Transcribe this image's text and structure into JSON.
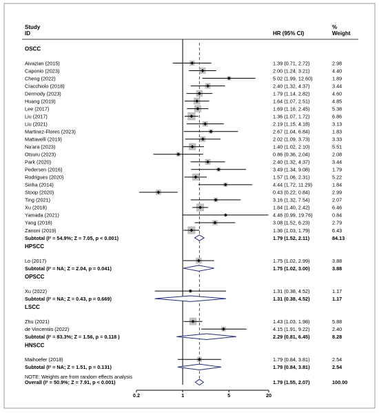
{
  "header": {
    "study_label": "Study",
    "id_label": "ID",
    "hr_label": "HR (95% CI)",
    "pct_label": "%",
    "weight_label": "Weight"
  },
  "colors": {
    "box": "#bfbfbf",
    "ci_line": "#000000",
    "diamond": "#1f2a7a",
    "null_line": "#000000",
    "overall_line": "#c00000"
  },
  "chart_data": {
    "type": "forest",
    "xscale": "log",
    "xlim": [
      0.2,
      20
    ],
    "xticks": [
      "0.2",
      "1",
      "5",
      "20"
    ],
    "null_line": 1,
    "overall_estimate": 1.79,
    "note": "NOTE:  Weights are from random effects analysis",
    "rows": [
      {
        "kind": "group",
        "label": "OSCC"
      },
      {
        "kind": "study",
        "label": "Aivazian (2015)",
        "hr": 1.39,
        "lo": 0.71,
        "hi": 2.72,
        "hr_text": "1.39 (0.71, 2.72)",
        "weight": "2.98"
      },
      {
        "kind": "study",
        "label": "Caponio (2023)",
        "hr": 2.0,
        "lo": 1.24,
        "hi": 3.21,
        "hr_text": "2.00 (1.24, 3.21)",
        "weight": "4.40"
      },
      {
        "kind": "study",
        "label": "Cheng (2022)",
        "hr": 5.02,
        "lo": 1.99,
        "hi": 12.6,
        "hr_text": "5.02 (1.99, 12.60)",
        "weight": "1.89"
      },
      {
        "kind": "study",
        "label": "Cracchiolo (2018)",
        "hr": 2.4,
        "lo": 1.32,
        "hi": 4.37,
        "hr_text": "2.40 (1.32, 4.37)",
        "weight": "3.44"
      },
      {
        "kind": "study",
        "label": "Dermody (2023)",
        "hr": 1.79,
        "lo": 1.14,
        "hi": 2.82,
        "hr_text": "1.79 (1.14, 2.82)",
        "weight": "4.60"
      },
      {
        "kind": "study",
        "label": "Huang (2019)",
        "hr": 1.64,
        "lo": 1.07,
        "hi": 2.51,
        "hr_text": "1.64 (1.07, 2.51)",
        "weight": "4.85"
      },
      {
        "kind": "study",
        "label": "Lee (2017)",
        "hr": 1.69,
        "lo": 1.16,
        "hi": 2.45,
        "hr_text": "1.69 (1.16, 2.45)",
        "weight": "5.38"
      },
      {
        "kind": "study",
        "label": "Liu (2017)",
        "hr": 1.36,
        "lo": 1.07,
        "hi": 1.72,
        "hr_text": "1.36 (1.07, 1.72)",
        "weight": "6.86"
      },
      {
        "kind": "study",
        "label": "Liu (2021)",
        "hr": 2.19,
        "lo": 1.15,
        "hi": 4.18,
        "hr_text": "2.19 (1.15, 4.18)",
        "weight": "3.13"
      },
      {
        "kind": "study",
        "label": "Martinez-Flores (2023)",
        "hr": 2.67,
        "lo": 1.04,
        "hi": 6.84,
        "hr_text": "2.67 (1.04, 6.84)",
        "weight": "1.83"
      },
      {
        "kind": "study",
        "label": "Mattavelli (2019)",
        "hr": 2.02,
        "lo": 1.09,
        "hi": 3.73,
        "hr_text": "2.02 (1.09, 3.73)",
        "weight": "3.33"
      },
      {
        "kind": "study",
        "label": "Na'ara (2023)",
        "hr": 1.4,
        "lo": 1.02,
        "hi": 2.1,
        "hr_text": "1.40 (1.02, 2.10)",
        "weight": "5.51"
      },
      {
        "kind": "study",
        "label": "Otsuru (2023)",
        "hr": 0.86,
        "lo": 0.36,
        "hi": 2.04,
        "hr_text": "0.86 (0.36, 2.04)",
        "weight": "2.08"
      },
      {
        "kind": "study",
        "label": "Park (2020)",
        "hr": 2.4,
        "lo": 1.32,
        "hi": 4.37,
        "hr_text": "2.40 (1.32, 4.37)",
        "weight": "3.44"
      },
      {
        "kind": "study",
        "label": "Pedersen (2016)",
        "hr": 3.49,
        "lo": 1.34,
        "hi": 9.08,
        "hr_text": "3.49 (1.34, 9.08)",
        "weight": "1.79"
      },
      {
        "kind": "study",
        "label": "Rodrigues (2020)",
        "hr": 1.57,
        "lo": 1.06,
        "hi": 2.31,
        "hr_text": "1.57 (1.06, 2.31)",
        "weight": "5.22"
      },
      {
        "kind": "study",
        "label": "Sinha (2014)",
        "hr": 4.44,
        "lo": 1.72,
        "hi": 11.29,
        "hr_text": "4.44 (1.72, 11.29)",
        "weight": "1.84"
      },
      {
        "kind": "study",
        "label": "Stoop (2020)",
        "hr": 0.43,
        "lo": 0.22,
        "hi": 0.84,
        "hr_text": "0.43 (0.22, 0.84)",
        "weight": "2.99"
      },
      {
        "kind": "study",
        "label": "Ting (2021)",
        "hr": 3.16,
        "lo": 1.32,
        "hi": 7.54,
        "hr_text": "3.16 (1.32, 7.54)",
        "weight": "2.07"
      },
      {
        "kind": "study",
        "label": "Xu (2018)",
        "hr": 1.84,
        "lo": 1.4,
        "hi": 2.42,
        "hr_text": "1.84 (1.40, 2.42)",
        "weight": "6.46"
      },
      {
        "kind": "study",
        "label": "Yamada (2021)",
        "hr": 4.46,
        "lo": 0.99,
        "hi": 19.76,
        "hr_text": "4.46 (0.99, 19.76)",
        "weight": "0.84"
      },
      {
        "kind": "study",
        "label": "Yang (2018)",
        "hr": 3.08,
        "lo": 1.52,
        "hi": 6.23,
        "hr_text": "3.08 (1.52, 6.23)",
        "weight": "2.79"
      },
      {
        "kind": "study",
        "label": "Zanoni (2019)",
        "hr": 1.36,
        "lo": 1.03,
        "hi": 1.79,
        "hr_text": "1.36 (1.03, 1.79)",
        "weight": "6.43"
      },
      {
        "kind": "subtotal",
        "label": "Subtotal  (I² = 54.9%; Z = 7.05, p < 0.001)",
        "hr": 1.79,
        "lo": 1.52,
        "hi": 2.11,
        "hr_text": "1.79 (1.52, 2.11)",
        "weight": "84.13"
      },
      {
        "kind": "gap"
      },
      {
        "kind": "group",
        "label": "HPSCC"
      },
      {
        "kind": "study",
        "label": "Lo (2017)",
        "hr": 1.75,
        "lo": 1.02,
        "hi": 2.99,
        "hr_text": "1.75 (1.02, 2.99)",
        "weight": "3.88"
      },
      {
        "kind": "subtotal",
        "label": "Subtotal  (I² = NA; Z = 2.04, p = 0.041)",
        "hr": 1.75,
        "lo": 1.02,
        "hi": 3.0,
        "hr_text": "1.75 (1.02, 3.00)",
        "weight": "3.88"
      },
      {
        "kind": "gap"
      },
      {
        "kind": "group",
        "label": "OPSCC"
      },
      {
        "kind": "study",
        "label": "Xu (2022)",
        "hr": 1.31,
        "lo": 0.38,
        "hi": 4.52,
        "hr_text": "1.31 (0.38, 4.52)",
        "weight": "1.17"
      },
      {
        "kind": "subtotal",
        "label": "Subtotal  (I² = NA; Z = 0.43, p = 0.669)",
        "hr": 1.31,
        "lo": 0.38,
        "hi": 4.52,
        "hr_text": "1.31 (0.38, 4.52)",
        "weight": "1.17"
      },
      {
        "kind": "gap"
      },
      {
        "kind": "group",
        "label": "LSCC"
      },
      {
        "kind": "study",
        "label": "Zhu (2021)",
        "hr": 1.43,
        "lo": 1.03,
        "hi": 1.98,
        "hr_text": "1.43 (1.03, 1.98)",
        "weight": "5.88"
      },
      {
        "kind": "study",
        "label": "de Vincentiis (2022)",
        "hr": 4.15,
        "lo": 1.91,
        "hi": 9.22,
        "hr_text": "4.15 (1.91, 9.22)",
        "weight": "2.40"
      },
      {
        "kind": "subtotal",
        "label": "Subtotal  (I² = 83.3%; Z = 1.56, p = 0.118 )",
        "hr": 2.29,
        "lo": 0.81,
        "hi": 6.45,
        "hr_text": "2.29 (0.81, 6.45)",
        "weight": "8.28"
      },
      {
        "kind": "gap"
      },
      {
        "kind": "group",
        "label": "HNSCC"
      },
      {
        "kind": "study",
        "label": "Maihoefer (2018)",
        "hr": 1.79,
        "lo": 0.84,
        "hi": 3.81,
        "hr_text": "1.79 (0.84, 3.81)",
        "weight": "2.54"
      },
      {
        "kind": "subtotal",
        "label": "Subtotal  (I² = NA; Z = 1.51, p = 0.131)",
        "hr": 1.79,
        "lo": 0.84,
        "hi": 3.81,
        "hr_text": "1.79 (0.84, 3.81)",
        "weight": "2.54"
      },
      {
        "kind": "gap"
      },
      {
        "kind": "overall",
        "label": "Overall  (I² = 50.9%; Z = 7.91, p < 0.001)",
        "hr": 1.79,
        "lo": 1.55,
        "hi": 2.07,
        "hr_text": "1.79 (1.55, 2.07)",
        "weight": "100.00"
      }
    ]
  }
}
